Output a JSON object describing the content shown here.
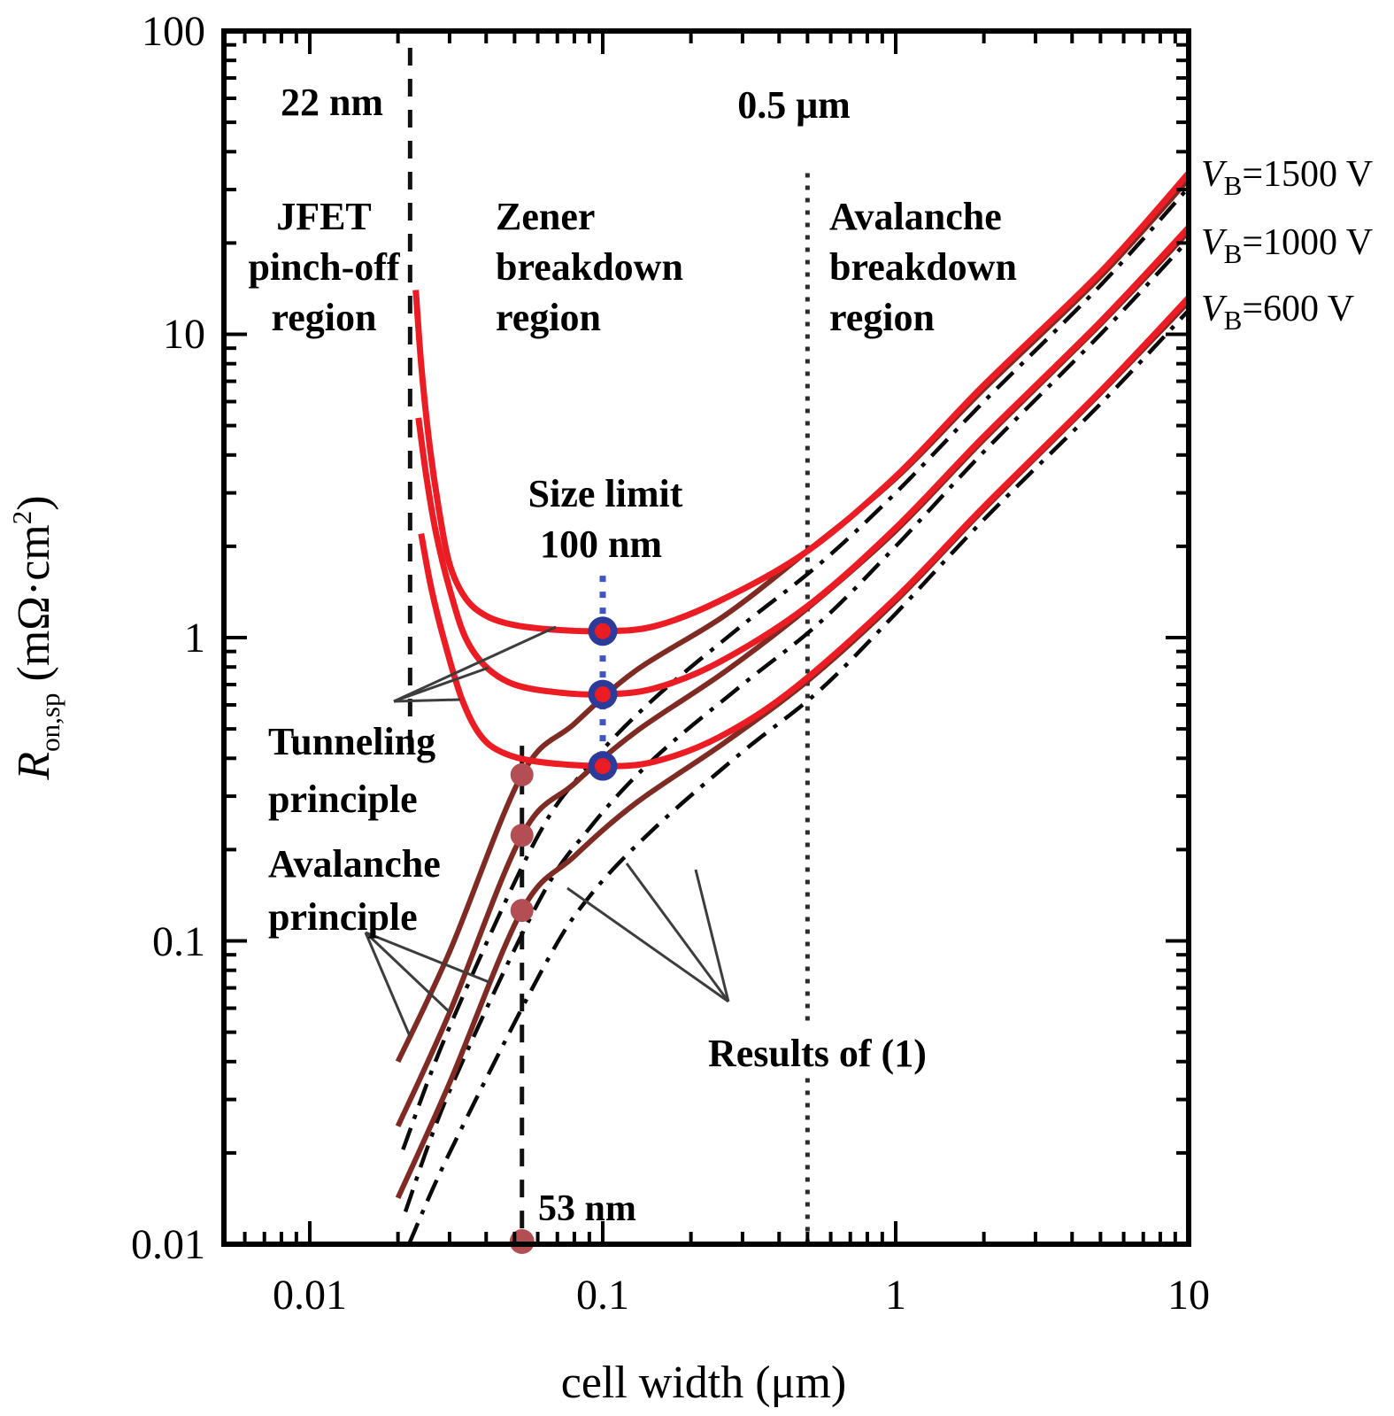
{
  "figure": {
    "x_axis": {
      "title_parts": {
        "pre": "cell width (",
        "mu": "μm",
        "post": ")"
      },
      "title": "cell width (μm)",
      "tick_labels": [
        "0.01",
        "0.1",
        "1",
        "10"
      ]
    },
    "y_axis": {
      "title": "Ron,sp (mΩ·cm2)",
      "title_parts": {
        "r": "R",
        "sub": "on,sp",
        "mid": " (mΩ·cm",
        "sup": "2",
        "end": ")"
      },
      "tick_labels": [
        "100",
        "10",
        "1",
        "0.1",
        "0.01"
      ]
    }
  },
  "annotations": {
    "node22": "22 nm",
    "node05": "0.5 μm",
    "nm53": "53 nm",
    "jfet": {
      "lines": [
        "JFET",
        "pinch-off",
        "region"
      ]
    },
    "zener": {
      "lines": [
        "Zener",
        "breakdown",
        "region"
      ]
    },
    "avalanche_region": {
      "lines": [
        "Avalanche",
        "breakdown",
        "region"
      ]
    },
    "size_limit": {
      "lines": [
        "Size limit",
        "100 nm"
      ]
    },
    "tunneling": {
      "lines": [
        "Tunneling",
        "principle"
      ]
    },
    "avalanche_principle": {
      "lines": [
        "Avalanche",
        "principle"
      ]
    },
    "results": "Results of (1)",
    "vb": [
      {
        "sym": "V",
        "sub": "B",
        "rest": "=1500 V"
      },
      {
        "sym": "V",
        "sub": "B",
        "rest": "=1000 V"
      },
      {
        "sym": "V",
        "sub": "B",
        "rest": "=600 V"
      }
    ]
  },
  "colors": {
    "red": "#ec1c24",
    "dark_red": "#7f2a23",
    "rose_dot": "#b34e55",
    "blue_ring": "#2c3a99",
    "blue_dotted": "#4156c5",
    "blue_text": "#3656b0",
    "guide_black": "#111111",
    "dotted_gray": "#2b2b2b",
    "leader": "#3d3d3d",
    "axis": "#000000"
  },
  "chart_data": {
    "type": "line",
    "title": "",
    "xlabel": "cell width (μm)",
    "ylabel": "R_on,sp (mΩ·cm²)",
    "x_scale": "log",
    "y_scale": "log",
    "xlim": [
      0.0051,
      10
    ],
    "ylim": [
      0.01,
      100
    ],
    "grid": false,
    "legend_position": "right-outside",
    "series": [
      {
        "name": "Tunneling principle, VB=1500 V",
        "style": "solid-red",
        "points": [
          [
            0.023,
            14
          ],
          [
            0.024,
            8
          ],
          [
            0.0255,
            4.5
          ],
          [
            0.0275,
            2.7
          ],
          [
            0.03,
            1.75
          ],
          [
            0.034,
            1.35
          ],
          [
            0.04,
            1.18
          ],
          [
            0.05,
            1.1
          ],
          [
            0.07,
            1.06
          ],
          [
            0.1,
            1.05
          ],
          [
            0.15,
            1.09
          ],
          [
            0.25,
            1.32
          ],
          [
            0.5,
            1.93
          ],
          [
            1,
            3.4
          ],
          [
            2,
            6.8
          ],
          [
            5,
            16
          ],
          [
            10,
            34
          ]
        ]
      },
      {
        "name": "Tunneling principle, VB=1000 V",
        "style": "solid-red",
        "points": [
          [
            0.0235,
            5.3
          ],
          [
            0.025,
            3.4
          ],
          [
            0.027,
            2.2
          ],
          [
            0.03,
            1.45
          ],
          [
            0.034,
            1.0
          ],
          [
            0.04,
            0.8
          ],
          [
            0.05,
            0.7
          ],
          [
            0.07,
            0.66
          ],
          [
            0.1,
            0.65
          ],
          [
            0.15,
            0.68
          ],
          [
            0.25,
            0.83
          ],
          [
            0.5,
            1.27
          ],
          [
            1,
            2.3
          ],
          [
            2,
            4.6
          ],
          [
            5,
            11
          ],
          [
            10,
            22.5
          ]
        ]
      },
      {
        "name": "Tunneling principle, VB=600 V",
        "style": "solid-red",
        "points": [
          [
            0.024,
            2.2
          ],
          [
            0.026,
            1.45
          ],
          [
            0.029,
            0.95
          ],
          [
            0.033,
            0.63
          ],
          [
            0.038,
            0.48
          ],
          [
            0.045,
            0.42
          ],
          [
            0.06,
            0.39
          ],
          [
            0.1,
            0.377
          ],
          [
            0.15,
            0.39
          ],
          [
            0.25,
            0.47
          ],
          [
            0.45,
            0.68
          ],
          [
            1,
            1.35
          ],
          [
            2,
            2.7
          ],
          [
            5,
            6.5
          ],
          [
            10,
            13.2
          ]
        ]
      },
      {
        "name": "Avalanche principle, VB=1500 V",
        "style": "solid-darkred",
        "points": [
          [
            0.02,
            0.04
          ],
          [
            0.03,
            0.092
          ],
          [
            0.053,
            0.353
          ],
          [
            0.08,
            0.52
          ],
          [
            0.13,
            0.78
          ],
          [
            0.26,
            1.18
          ],
          [
            0.5,
            1.93
          ],
          [
            1,
            3.35
          ],
          [
            2,
            6.6
          ],
          [
            5,
            15.5
          ],
          [
            10,
            32.5
          ]
        ]
      },
      {
        "name": "Avalanche principle, VB=1000 V",
        "style": "solid-darkred",
        "points": [
          [
            0.02,
            0.0245
          ],
          [
            0.03,
            0.058
          ],
          [
            0.053,
            0.223
          ],
          [
            0.08,
            0.33
          ],
          [
            0.13,
            0.49
          ],
          [
            0.26,
            0.77
          ],
          [
            0.5,
            1.25
          ],
          [
            1,
            2.25
          ],
          [
            2,
            4.5
          ],
          [
            5,
            10.8
          ],
          [
            10,
            21.8
          ]
        ]
      },
      {
        "name": "Avalanche principle, VB=600 V",
        "style": "solid-darkred",
        "points": [
          [
            0.02,
            0.0142
          ],
          [
            0.03,
            0.034
          ],
          [
            0.053,
            0.126
          ],
          [
            0.08,
            0.19
          ],
          [
            0.13,
            0.285
          ],
          [
            0.26,
            0.45
          ],
          [
            0.5,
            0.72
          ],
          [
            1,
            1.32
          ],
          [
            2,
            2.65
          ],
          [
            5,
            6.4
          ],
          [
            10,
            12.8
          ]
        ]
      },
      {
        "name": "Results of (1), VB=1500 V",
        "style": "dashdot-black",
        "points": [
          [
            0.0208,
            0.0205
          ],
          [
            0.03,
            0.052
          ],
          [
            0.059,
            0.215
          ],
          [
            0.09,
            0.38
          ],
          [
            0.15,
            0.63
          ],
          [
            0.3,
            1.1
          ],
          [
            0.55,
            1.75
          ],
          [
            1,
            3.0
          ],
          [
            2,
            6.0
          ],
          [
            5,
            14.5
          ],
          [
            10,
            30.5
          ]
        ]
      },
      {
        "name": "Results of (1), VB=1000 V",
        "style": "dashdot-black",
        "points": [
          [
            0.0212,
            0.0128
          ],
          [
            0.03,
            0.032
          ],
          [
            0.06,
            0.133
          ],
          [
            0.09,
            0.235
          ],
          [
            0.15,
            0.4
          ],
          [
            0.3,
            0.7
          ],
          [
            0.55,
            1.12
          ],
          [
            1,
            2.0
          ],
          [
            2,
            4.1
          ],
          [
            5,
            10
          ],
          [
            10,
            20.5
          ]
        ]
      },
      {
        "name": "Results of (1), VB=600 V",
        "style": "dashdot-black",
        "points": [
          [
            0.0218,
            0.01
          ],
          [
            0.03,
            0.02
          ],
          [
            0.062,
            0.08
          ],
          [
            0.09,
            0.14
          ],
          [
            0.15,
            0.235
          ],
          [
            0.3,
            0.42
          ],
          [
            0.55,
            0.67
          ],
          [
            1,
            1.2
          ],
          [
            2,
            2.45
          ],
          [
            5,
            5.9
          ],
          [
            10,
            12.0
          ]
        ]
      }
    ],
    "guides": [
      {
        "label": "22 nm",
        "w": 0.022,
        "r1": 88,
        "r2": 0.4,
        "style": "dash-black"
      },
      {
        "label": "53 nm",
        "w": 0.053,
        "r1": 0.44,
        "r2": 0.0102,
        "style": "dash-black"
      },
      {
        "label": "0.5 μm",
        "w": 0.5,
        "r1": 34,
        "r2": 0.0102,
        "style": "dot-black"
      },
      {
        "label": "Size limit 100 nm",
        "w": 0.1,
        "r1": 1.6,
        "r2": 0.34,
        "style": "dot-blue"
      }
    ],
    "markers": {
      "blue_ring_dots": {
        "w": 0.1,
        "values": [
          1.05,
          0.65,
          0.377
        ],
        "meaning": "size limit 100 nm minima"
      },
      "rose_dots": {
        "w": 0.053,
        "values": [
          0.353,
          0.223,
          0.126
        ],
        "meaning": "53 nm points"
      },
      "axis_dot": {
        "w": 0.053,
        "value": 0.0102
      }
    },
    "x_ticks": [
      0.01,
      0.1,
      1,
      10
    ],
    "y_ticks": [
      100,
      10,
      1,
      0.1,
      0.01
    ]
  }
}
